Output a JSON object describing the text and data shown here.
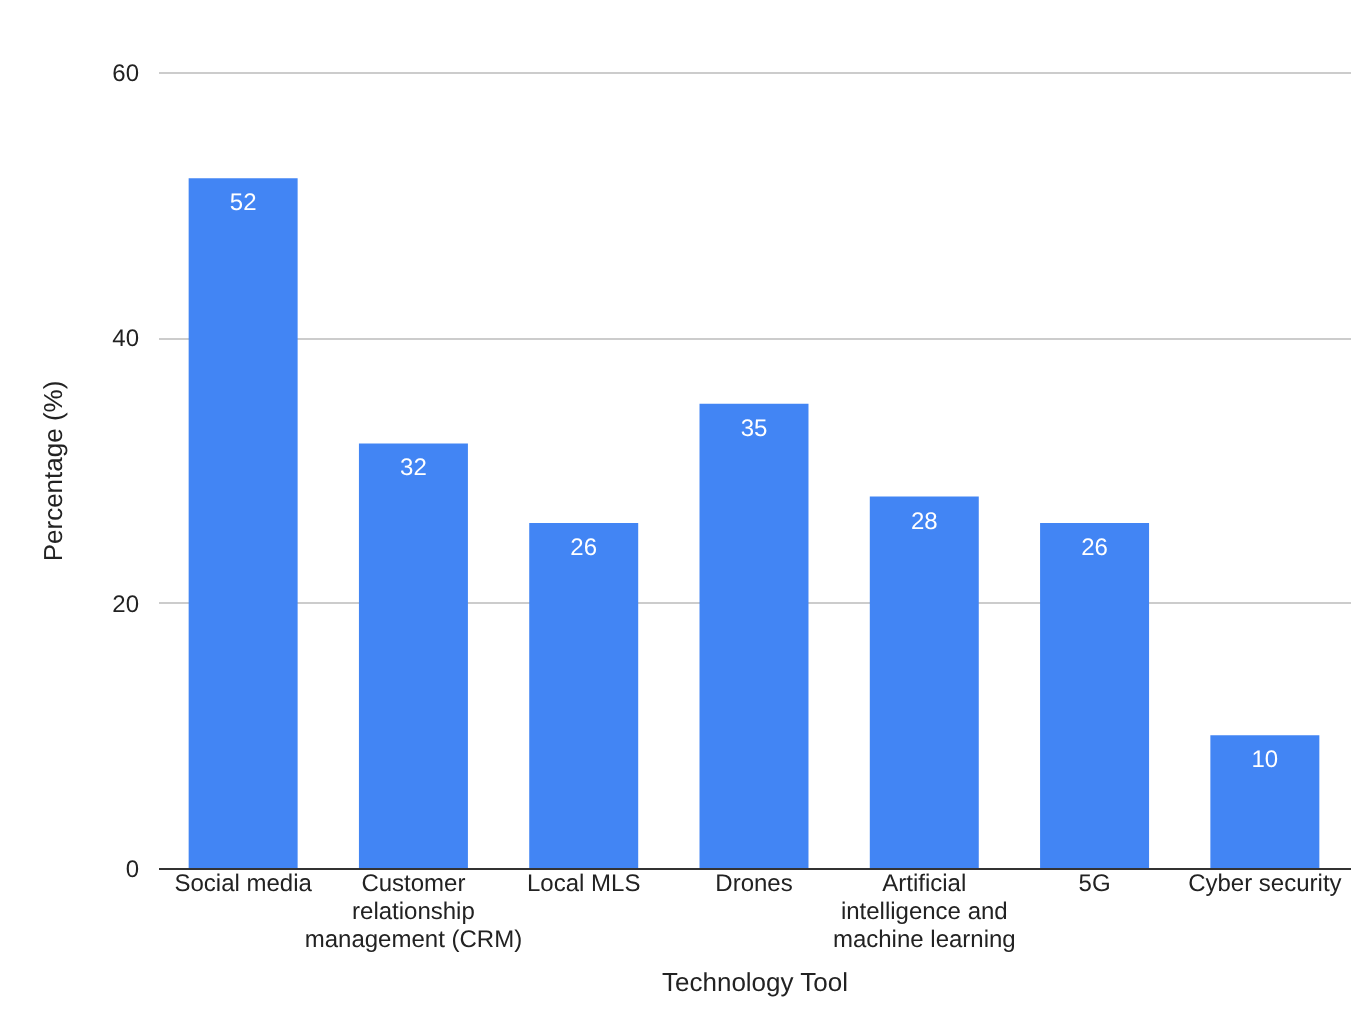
{
  "chart_data": {
    "type": "bar",
    "xlabel": "Technology Tool",
    "ylabel": "Percentage (%)",
    "categories": [
      "Social media",
      "Customer relationship management (CRM)",
      "Local MLS",
      "Drones",
      "Artificial intelligence and machine learning",
      "5G",
      "Cyber security"
    ],
    "values": [
      52,
      32,
      26,
      35,
      28,
      26,
      10
    ],
    "color": "#4285f4",
    "ylim": [
      0,
      60
    ],
    "yticks": [
      0,
      20,
      40,
      60
    ],
    "grid": "y",
    "data_labels": true
  }
}
